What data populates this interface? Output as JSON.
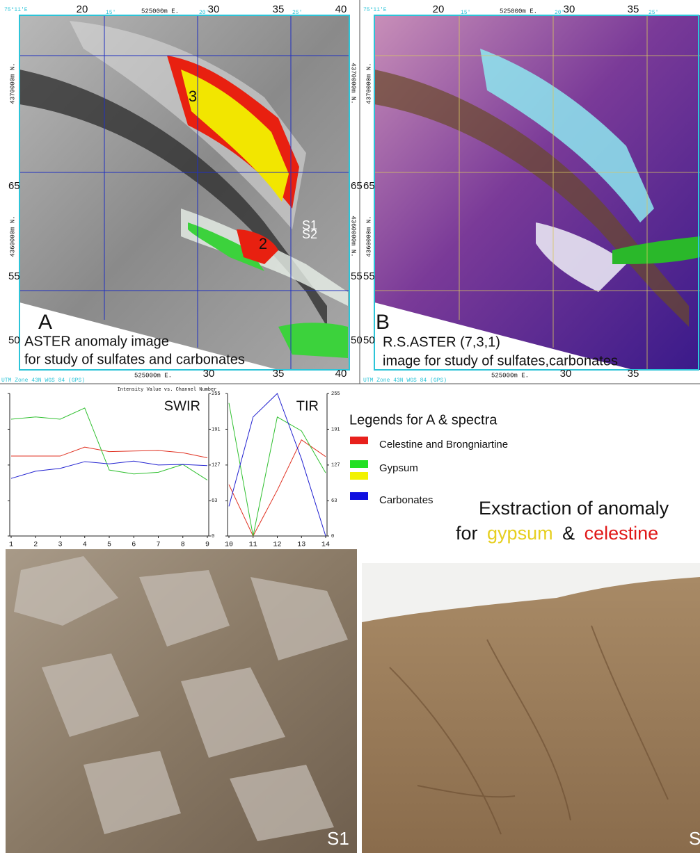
{
  "panels": [
    {
      "letter": "A",
      "caption": [
        "ASTER anomaly image",
        "for study of sulfates and carbonates"
      ],
      "annotations": [
        "3",
        "2",
        "S1",
        "S2"
      ],
      "top": [
        "75°11'E",
        "20",
        "15'",
        "525000m E.",
        "20'",
        "30",
        "35",
        "25'",
        "40"
      ],
      "left": [
        "4370000m N.",
        "65",
        "4360000m N.",
        "55",
        "50"
      ],
      "right": [
        "4370000m N.",
        "65",
        "4360000m N.",
        "55",
        "50"
      ],
      "bottom": [
        "UTM Zone 43N WGS 84 (GPS)",
        "525000m E.",
        "30",
        "35",
        "40"
      ]
    },
    {
      "letter": "B",
      "caption": [
        "R.S.ASTER (7,3,1)",
        "image for study of sulfates,carbonates"
      ],
      "top": [
        "75°11'E",
        "20",
        "15'",
        "525000m E.",
        "20'",
        "30",
        "35",
        "25'"
      ],
      "left": [
        "4370000m N.",
        "65",
        "4360000m N.",
        "55",
        "50"
      ],
      "bottom": [
        "UTM Zone 43N WGS 84 (GPS)",
        "525000m E.",
        "30",
        "35"
      ]
    }
  ],
  "chart_data": [
    {
      "type": "line",
      "title": "Intensity Value vs. Channel Number",
      "label": "SWIR",
      "x": [
        1,
        2,
        3,
        4,
        5,
        6,
        7,
        8,
        9
      ],
      "xlim": [
        1,
        9
      ],
      "xticks": [
        1,
        2,
        3,
        4,
        5,
        6,
        7,
        8,
        9
      ],
      "ylim": [
        0,
        255
      ],
      "yticks": [
        0,
        63,
        127,
        191,
        255
      ],
      "series": [
        {
          "color": "#e03020",
          "values": [
            143,
            143,
            143,
            159,
            151,
            152,
            153,
            149,
            140
          ]
        },
        {
          "color": "#30c030",
          "values": [
            209,
            213,
            209,
            229,
            118,
            111,
            114,
            128,
            100
          ]
        },
        {
          "color": "#2020d0",
          "values": [
            103,
            116,
            121,
            133,
            129,
            134,
            127,
            128,
            126
          ]
        }
      ]
    },
    {
      "type": "line",
      "label": "TIR",
      "x": [
        10,
        11,
        12,
        13,
        14
      ],
      "xlim": [
        10,
        14
      ],
      "xticks": [
        10,
        11,
        12,
        13,
        14
      ],
      "ylim": [
        0,
        255
      ],
      "yticks": [
        0,
        63,
        127,
        191,
        255
      ],
      "series": [
        {
          "color": "#e03020",
          "values": [
            92,
            0,
            82,
            172,
            142
          ]
        },
        {
          "color": "#30c030",
          "values": [
            238,
            0,
            213,
            188,
            113
          ]
        },
        {
          "color": "#2020d0",
          "values": [
            53,
            213,
            255,
            138,
            0
          ]
        }
      ]
    }
  ],
  "legend": {
    "title": "Legends for A  & spectra",
    "items": [
      {
        "label": "Celestine and Brongniartine",
        "colors": [
          "#e8201c"
        ]
      },
      {
        "label": "Gypsum",
        "colors": [
          "#22e022",
          "#f2f200"
        ]
      },
      {
        "label": "Carbonates",
        "colors": [
          "#1010e0"
        ]
      }
    ]
  },
  "heading": {
    "line1": "Exstraction of anomaly",
    "line2": [
      "for",
      "gypsum",
      "&",
      "celestine"
    ]
  },
  "photos": [
    {
      "label": "S1"
    },
    {
      "label": "S"
    }
  ]
}
